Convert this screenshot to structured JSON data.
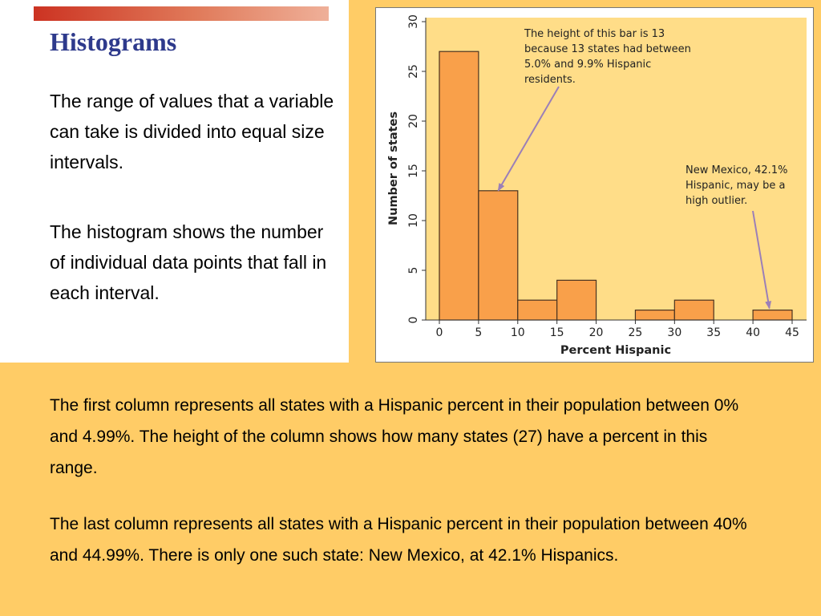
{
  "slide": {
    "title": "Histograms",
    "paragraph1": "The range of values that a variable can take is divided into equal size intervals.",
    "paragraph2": "The histogram shows the number of individual data points that fall in each interval.",
    "bottom_paragraph1": "The first column represents all states with a Hispanic percent in their population between 0% and 4.99%. The height of the column shows how many states (27) have a percent in this range.",
    "bottom_paragraph2": "The last column represents all states with a Hispanic percent in their population between 40% and 44.99%. There is only one such state: New Mexico, at 42.1% Hispanics."
  },
  "colors": {
    "background": "#ffcc66",
    "title": "#2e3a8c",
    "plot_area": "#ffdd88",
    "bar_fill": "#f9a04a",
    "bar_stroke": "#4a3320",
    "arrow": "#9b7fb8"
  },
  "chart_data": {
    "type": "bar",
    "title": "",
    "xlabel": "Percent Hispanic",
    "ylabel": "Number of states",
    "bin_edges": [
      0,
      5,
      10,
      15,
      20,
      25,
      30,
      35,
      40,
      45
    ],
    "values": [
      27,
      13,
      2,
      4,
      0,
      1,
      2,
      0,
      1
    ],
    "xlim": [
      0,
      45
    ],
    "ylim": [
      0,
      30
    ],
    "x_ticks": [
      "0",
      "5",
      "10",
      "15",
      "20",
      "25",
      "30",
      "35",
      "40",
      "45"
    ],
    "y_ticks": [
      "0",
      "5",
      "10",
      "15",
      "20",
      "25",
      "30"
    ],
    "grid": false,
    "annotations": [
      {
        "lines": [
          "The height of this bar is 13",
          "because 13 states had between",
          "5.0% and 9.9% Hispanic",
          "residents."
        ],
        "target": {
          "x": 7.5,
          "y": 13
        }
      },
      {
        "lines": [
          "New Mexico, 42.1%",
          "Hispanic, may be a",
          "high outlier."
        ],
        "target": {
          "x": 42.1,
          "y": 1
        }
      }
    ]
  }
}
